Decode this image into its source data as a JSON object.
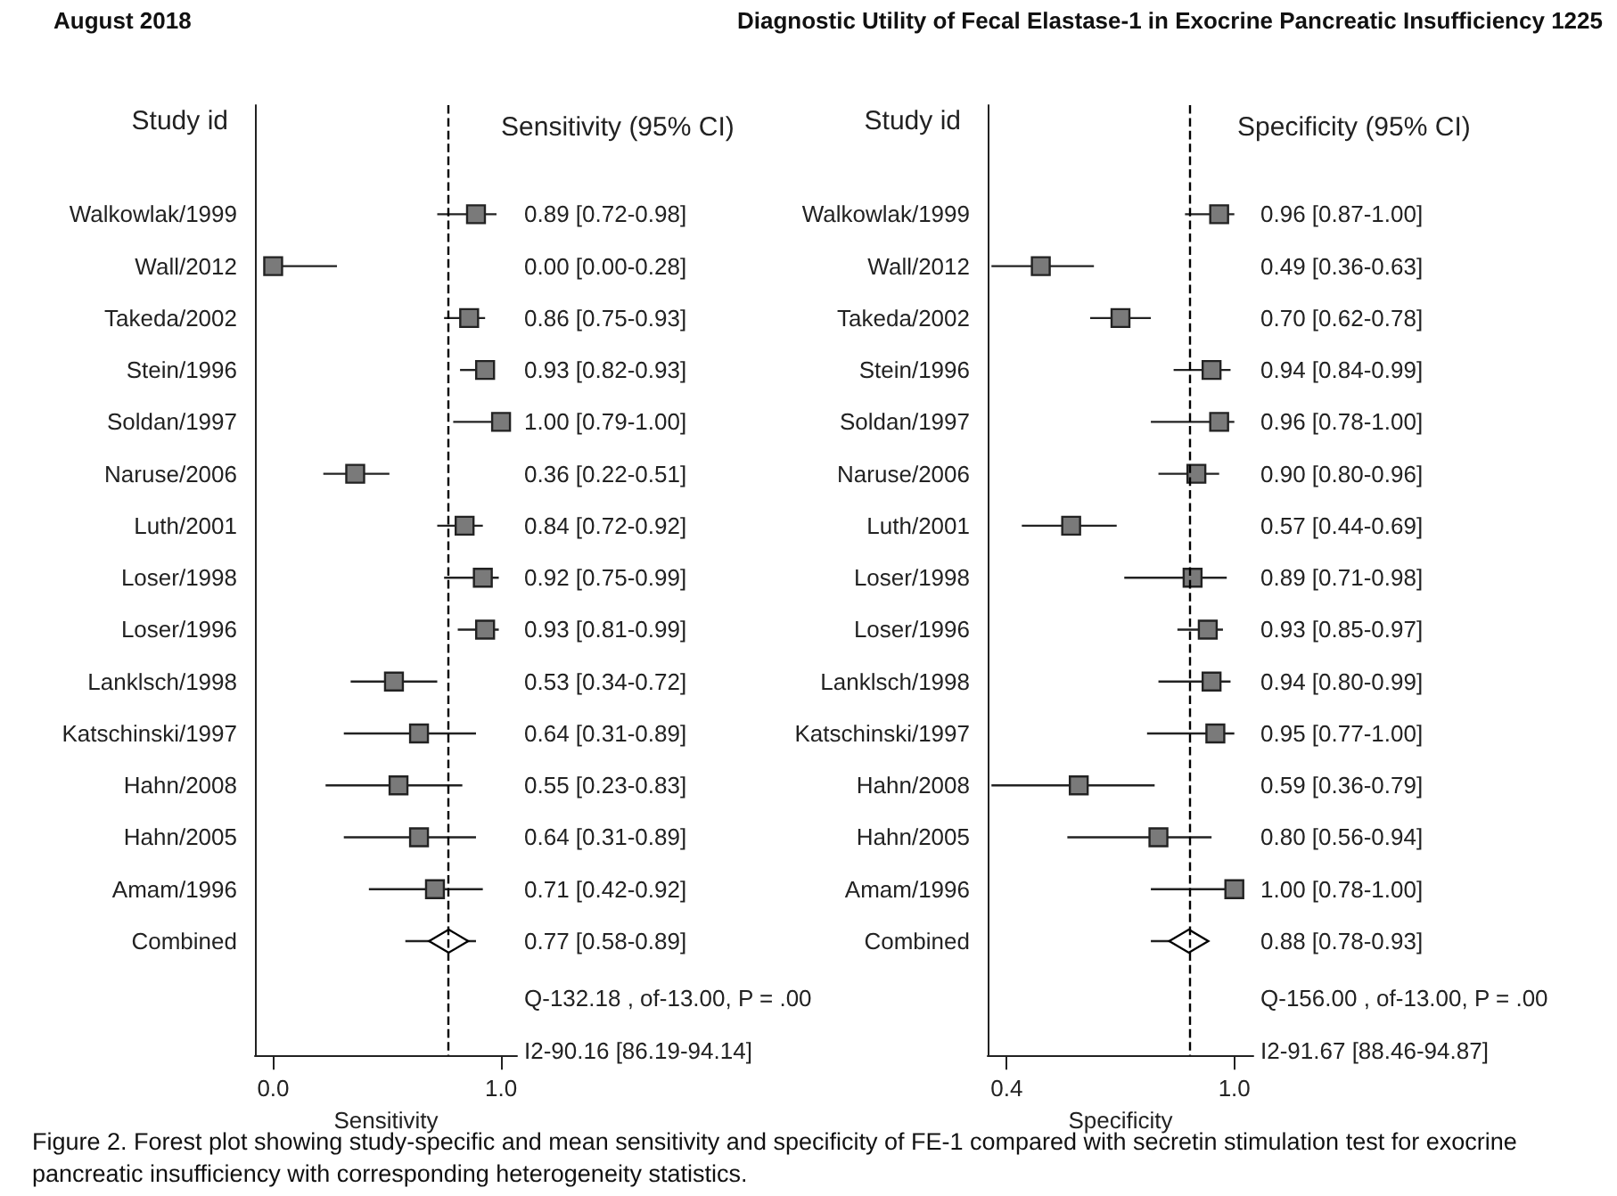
{
  "chart_data": [
    {
      "type": "scatter",
      "orientation": "horizontal",
      "title": "Sensitivity (95% CI)",
      "ylabel": "Study id",
      "xlabel": "Sensitivity",
      "xlim": [
        -0.08,
        1.07
      ],
      "xticks": [
        {
          "value": 0,
          "label": "0.0"
        },
        {
          "value": 1,
          "label": "1.0"
        }
      ],
      "categories": [
        "Walkowlak/1999",
        "Wall/2012",
        "Takeda/2002",
        "Stein/1996",
        "Soldan/1997",
        "Naruse/2006",
        "Luth/2001",
        "Loser/1998",
        "Loser/1996",
        "Lanklsch/1998",
        "Katschinski/1997",
        "Hahn/2008",
        "Hahn/2005",
        "Amam/1996",
        "Combined"
      ],
      "series": [
        {
          "marker": "square",
          "color": "#7a7a7a",
          "values": [
            0.89,
            0.0,
            0.86,
            0.93,
            1.0,
            0.36,
            0.84,
            0.92,
            0.93,
            0.53,
            0.64,
            0.55,
            0.64,
            0.71,
            null
          ],
          "errors": [
            [
              0.72,
              0.98
            ],
            [
              0.0,
              0.28
            ],
            [
              0.75,
              0.93
            ],
            [
              0.82,
              0.93
            ],
            [
              0.79,
              1.0
            ],
            [
              0.22,
              0.51
            ],
            [
              0.72,
              0.92
            ],
            [
              0.75,
              0.99
            ],
            [
              0.81,
              0.99
            ],
            [
              0.34,
              0.72
            ],
            [
              0.31,
              0.89
            ],
            [
              0.23,
              0.83
            ],
            [
              0.31,
              0.89
            ],
            [
              0.42,
              0.92
            ],
            null
          ],
          "value_labels": [
            "0.89 [0.72-0.98]",
            "0.00 [0.00-0.28]",
            "0.86 [0.75-0.93]",
            "0.93 [0.82-0.93]",
            "1.00 [0.79-1.00]",
            "0.36 [0.22-0.51]",
            "0.84 [0.72-0.92]",
            "0.92 [0.75-0.99]",
            "0.93 [0.81-0.99]",
            "0.53 [0.34-0.72]",
            "0.64 [0.31-0.89]",
            "0.55 [0.23-0.83]",
            "0.64 [0.31-0.89]",
            "0.71 [0.42-0.92]",
            null
          ]
        },
        {
          "marker": "diamond",
          "color": "#000000",
          "values": [
            null,
            null,
            null,
            null,
            null,
            null,
            null,
            null,
            null,
            null,
            null,
            null,
            null,
            null,
            0.77
          ],
          "errors": [
            null,
            null,
            null,
            null,
            null,
            null,
            null,
            null,
            null,
            null,
            null,
            null,
            null,
            null,
            [
              0.58,
              0.89
            ]
          ],
          "value_labels": [
            null,
            null,
            null,
            null,
            null,
            null,
            null,
            null,
            null,
            null,
            null,
            null,
            null,
            null,
            "0.77 [0.58-0.89]"
          ]
        }
      ],
      "ref_lines": [
        {
          "axis": "x",
          "value": 0.77,
          "line_style": "dashed",
          "color": "#000000"
        }
      ],
      "annotations": [
        "Q-132.18 , of-13.00, P = .00",
        "I2-90.16 [86.19-94.14]"
      ]
    },
    {
      "type": "scatter",
      "orientation": "horizontal",
      "title": "Specificity (95% CI)",
      "ylabel": "Study id",
      "xlabel": "Specificity",
      "xlim": [
        0.35,
        1.05
      ],
      "xticks": [
        {
          "value": 0.4,
          "label": "0.4"
        },
        {
          "value": 1,
          "label": "1.0"
        }
      ],
      "categories": [
        "Walkowlak/1999",
        "Wall/2012",
        "Takeda/2002",
        "Stein/1996",
        "Soldan/1997",
        "Naruse/2006",
        "Luth/2001",
        "Loser/1998",
        "Loser/1996",
        "Lanklsch/1998",
        "Katschinski/1997",
        "Hahn/2008",
        "Hahn/2005",
        "Amam/1996",
        "Combined"
      ],
      "series": [
        {
          "marker": "square",
          "color": "#7a7a7a",
          "values": [
            0.96,
            0.49,
            0.7,
            0.94,
            0.96,
            0.9,
            0.57,
            0.89,
            0.93,
            0.94,
            0.95,
            0.59,
            0.8,
            1.0,
            null
          ],
          "errors": [
            [
              0.87,
              1.0
            ],
            [
              0.36,
              0.63
            ],
            [
              0.62,
              0.78
            ],
            [
              0.84,
              0.99
            ],
            [
              0.78,
              1.0
            ],
            [
              0.8,
              0.96
            ],
            [
              0.44,
              0.69
            ],
            [
              0.71,
              0.98
            ],
            [
              0.85,
              0.97
            ],
            [
              0.8,
              0.99
            ],
            [
              0.77,
              1.0
            ],
            [
              0.36,
              0.79
            ],
            [
              0.56,
              0.94
            ],
            [
              0.78,
              1.0
            ],
            null
          ],
          "value_labels": [
            "0.96 [0.87-1.00]",
            "0.49 [0.36-0.63]",
            "0.70 [0.62-0.78]",
            "0.94 [0.84-0.99]",
            "0.96 [0.78-1.00]",
            "0.90 [0.80-0.96]",
            "0.57 [0.44-0.69]",
            "0.89 [0.71-0.98]",
            "0.93 [0.85-0.97]",
            "0.94 [0.80-0.99]",
            "0.95 [0.77-1.00]",
            "0.59 [0.36-0.79]",
            "0.80 [0.56-0.94]",
            "1.00 [0.78-1.00]",
            null
          ]
        },
        {
          "marker": "diamond",
          "color": "#000000",
          "values": [
            null,
            null,
            null,
            null,
            null,
            null,
            null,
            null,
            null,
            null,
            null,
            null,
            null,
            null,
            0.88
          ],
          "errors": [
            null,
            null,
            null,
            null,
            null,
            null,
            null,
            null,
            null,
            null,
            null,
            null,
            null,
            null,
            [
              0.78,
              0.93
            ]
          ],
          "value_labels": [
            null,
            null,
            null,
            null,
            null,
            null,
            null,
            null,
            null,
            null,
            null,
            null,
            null,
            null,
            "0.88 [0.78-0.93]"
          ]
        }
      ],
      "ref_lines": [
        {
          "axis": "x",
          "value": 0.88,
          "line_style": "dashed",
          "color": "#000000"
        }
      ],
      "annotations": [
        "Q-156.00 , of-13.00, P = .00",
        "I2-91.67 [88.46-94.87]"
      ]
    },
    {
      "type": "other",
      "annotations": [
        "August 2018",
        "Diagnostic Utility of Fecal Elastase-1 in Exocrine Pancreatic Insufficiency 1225",
        "Figure 2. Forest plot showing study-specific and mean sensitivity and specificity of FE-1 compared with secretin stimulation test for exocrine pancreatic insufficiency with corresponding heterogeneity statistics."
      ]
    }
  ]
}
